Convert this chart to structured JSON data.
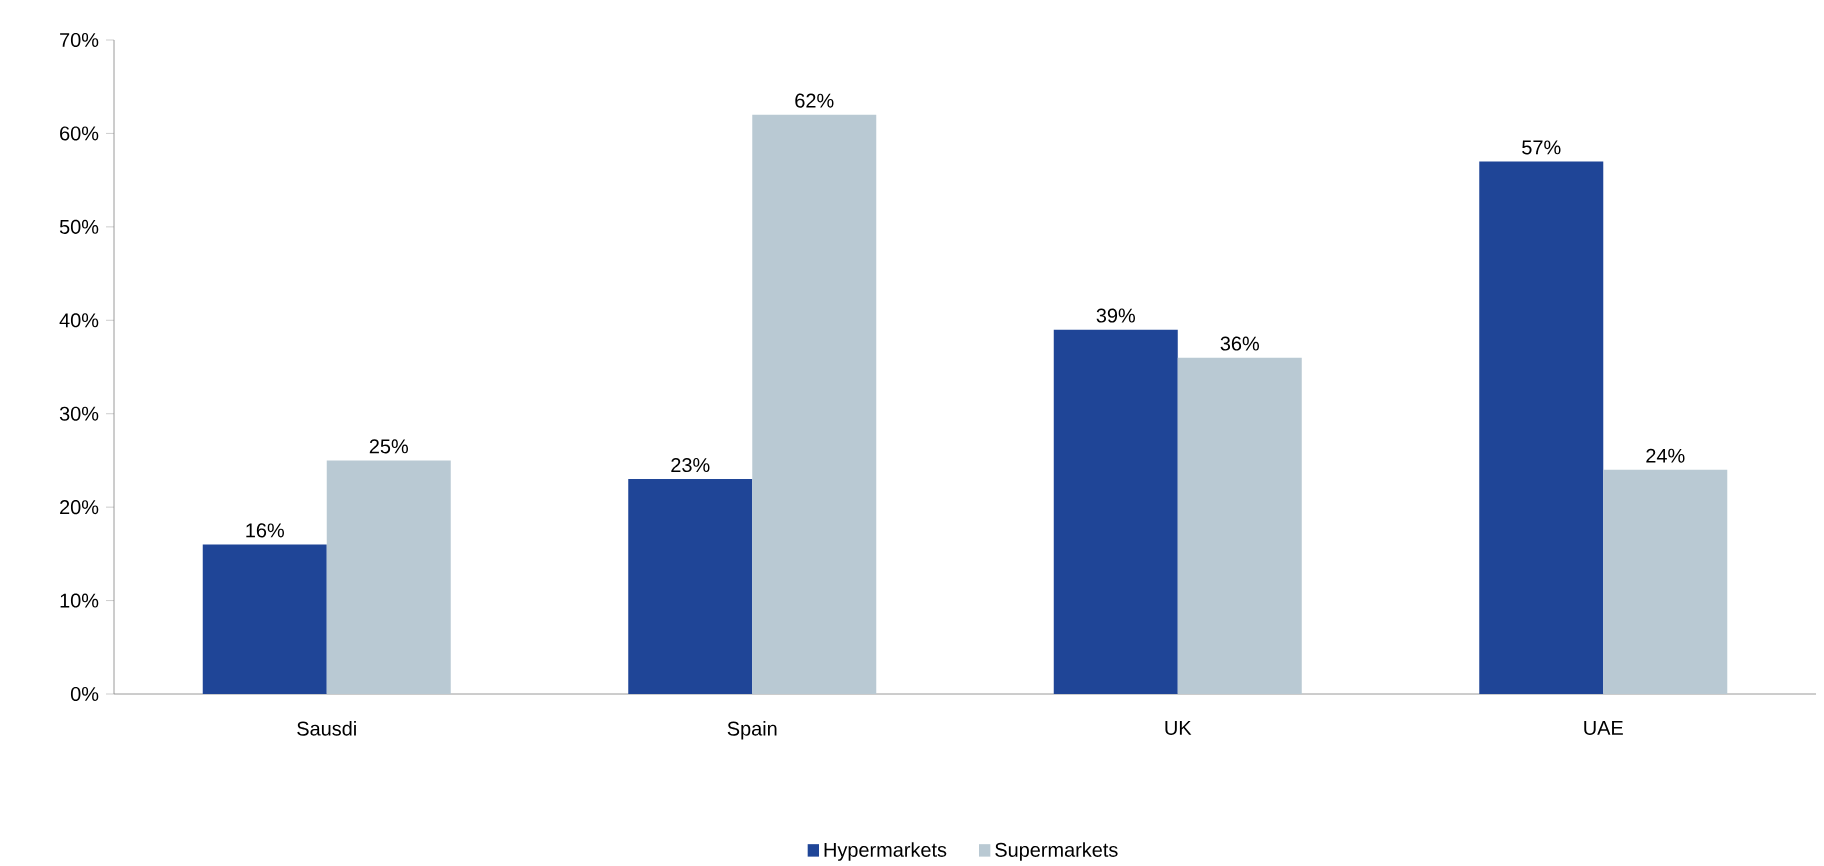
{
  "chart_data": {
    "type": "bar",
    "categories": [
      "Sausdi",
      "Spain",
      "UK",
      "UAE"
    ],
    "series": [
      {
        "name": "Hypermarkets",
        "color": "#1f4597",
        "values": [
          16,
          23,
          39,
          57
        ],
        "value_labels": [
          "16%",
          "23%",
          "39%",
          "57%"
        ]
      },
      {
        "name": "Supermarkets",
        "color": "#b9c9d3",
        "values": [
          25,
          62,
          36,
          24
        ],
        "value_labels": [
          "25%",
          "62%",
          "36%",
          "24%"
        ]
      }
    ],
    "ylim": [
      0,
      70
    ],
    "yticks": [
      {
        "value": 0,
        "label": "0%"
      },
      {
        "value": 10,
        "label": "10%"
      },
      {
        "value": 20,
        "label": "20%"
      },
      {
        "value": 30,
        "label": "30%"
      },
      {
        "value": 40,
        "label": "40%"
      },
      {
        "value": 50,
        "label": "50%"
      },
      {
        "value": 60,
        "label": "60%"
      },
      {
        "value": 70,
        "label": "70%"
      }
    ],
    "grid": false,
    "legend": "bottom"
  }
}
